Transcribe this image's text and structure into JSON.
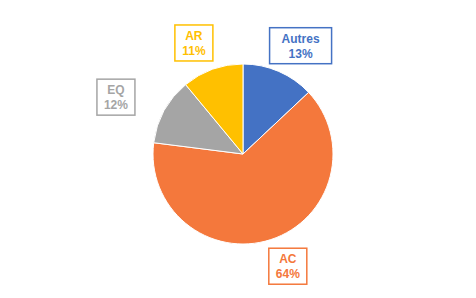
{
  "chart_data": {
    "type": "pie",
    "categories": [
      "Autres",
      "AC",
      "EQ",
      "AR"
    ],
    "values": [
      13,
      64,
      12,
      11
    ],
    "value_labels": [
      "13%",
      "64%",
      "12%",
      "11%"
    ],
    "colors": [
      "#4472C4",
      "#F4783C",
      "#A5A5A5",
      "#FFC000"
    ],
    "data_labels": true
  }
}
